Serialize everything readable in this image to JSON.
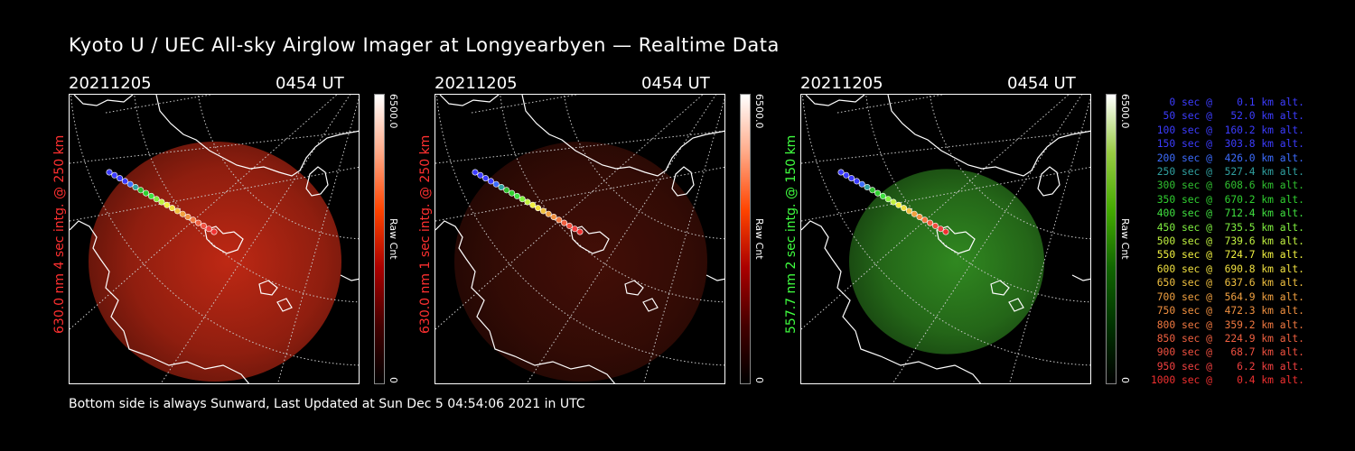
{
  "title": "Kyoto U / UEC All-sky Airglow Imager at Longyearbyen — Realtime Data",
  "panels": [
    {
      "date": "20211205",
      "time": "0454 UT",
      "side_label": "630.0 nm 4 sec intg. @ 250 km",
      "label_color": "#ff3030",
      "cbar_max": "6500.0",
      "cbar_min": "0",
      "cbar_unit": "Raw Cnt",
      "glow": "red",
      "intensity": 1.0
    },
    {
      "date": "20211205",
      "time": "0454 UT",
      "side_label": "630.0 nm 1 sec intg. @ 250 km",
      "label_color": "#ff3030",
      "cbar_max": "6500.0",
      "cbar_min": "0",
      "cbar_unit": "Raw Cnt",
      "glow": "red",
      "intensity": 0.35
    },
    {
      "date": "20211205",
      "time": "0454 UT",
      "side_label": "557.7 nm 2 sec intg. @ 150 km",
      "label_color": "#40ff40",
      "cbar_max": "6500.0",
      "cbar_min": "0",
      "cbar_unit": "Raw Cnt",
      "glow": "green",
      "intensity": 0.8
    }
  ],
  "legend": [
    {
      "text": "   0 sec @    0.1 km alt.",
      "color": "#3c3cff"
    },
    {
      "text": "  50 sec @   52.0 km alt.",
      "color": "#3c3cff"
    },
    {
      "text": " 100 sec @  160.2 km alt.",
      "color": "#3c3cff"
    },
    {
      "text": " 150 sec @  303.8 km alt.",
      "color": "#3c3cff"
    },
    {
      "text": " 200 sec @  426.0 km alt.",
      "color": "#3c6cff"
    },
    {
      "text": " 250 sec @  527.4 km alt.",
      "color": "#30a0a0"
    },
    {
      "text": " 300 sec @  608.6 km alt.",
      "color": "#30c030"
    },
    {
      "text": " 350 sec @  670.2 km alt.",
      "color": "#30d030"
    },
    {
      "text": " 400 sec @  712.4 km alt.",
      "color": "#40e040"
    },
    {
      "text": " 450 sec @  735.5 km alt.",
      "color": "#80f040"
    },
    {
      "text": " 500 sec @  739.6 km alt.",
      "color": "#c0f040"
    },
    {
      "text": " 550 sec @  724.7 km alt.",
      "color": "#f0f040"
    },
    {
      "text": " 600 sec @  690.8 km alt.",
      "color": "#f0e040"
    },
    {
      "text": " 650 sec @  637.6 km alt.",
      "color": "#f0c040"
    },
    {
      "text": " 700 sec @  564.9 km alt.",
      "color": "#f0a040"
    },
    {
      "text": " 750 sec @  472.3 km alt.",
      "color": "#f09040"
    },
    {
      "text": " 800 sec @  359.2 km alt.",
      "color": "#f07840"
    },
    {
      "text": " 850 sec @  224.9 km alt.",
      "color": "#f06040"
    },
    {
      "text": " 900 sec @   68.7 km alt.",
      "color": "#f05040"
    },
    {
      "text": " 950 sec @    6.2 km alt.",
      "color": "#f04040"
    },
    {
      "text": "1000 sec @    0.4 km alt.",
      "color": "#f03030"
    }
  ],
  "footer": "Bottom side is always Sunward, Last Updated at Sun Dec  5 04:54:06 2021 in UTC"
}
